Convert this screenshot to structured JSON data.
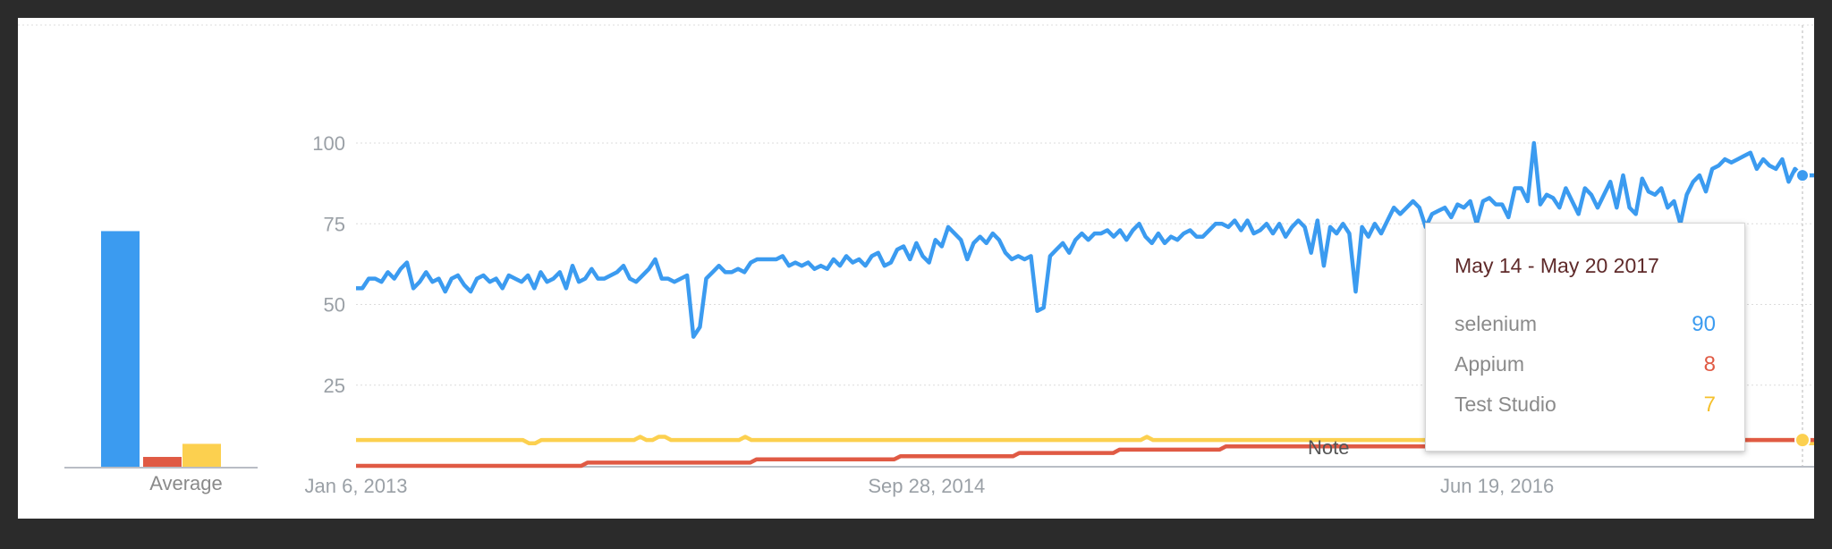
{
  "colors": {
    "selenium": "#3b9bf0",
    "appium": "#e05a44",
    "test_studio": "#fcd04f",
    "grid": "#dcdcdc"
  },
  "average_label": "Average",
  "note_label": "Note",
  "tooltip": {
    "title": "May 14 - May 20 2017",
    "rows": [
      {
        "name": "selenium",
        "value": "90"
      },
      {
        "name": "Appium",
        "value": "8"
      },
      {
        "name": "Test Studio",
        "value": "7"
      }
    ]
  },
  "chart_data": [
    {
      "type": "bar",
      "xlabel": "Average",
      "categories": [
        "selenium",
        "Appium",
        "Test Studio"
      ],
      "values": [
        72,
        3,
        7
      ],
      "ylim": [
        0,
        100
      ]
    },
    {
      "type": "line",
      "ylim": [
        0,
        100
      ],
      "y_ticks": [
        25,
        50,
        75,
        100
      ],
      "x_tick_labels": [
        "Jan 6, 2013",
        "Sep 28, 2014",
        "Jun 19, 2016"
      ],
      "x_range": [
        "2013-01-06",
        "2017-06-04"
      ],
      "grid": true,
      "series": [
        {
          "name": "selenium",
          "values": [
            55,
            55,
            58,
            58,
            57,
            60,
            58,
            61,
            63,
            55,
            57,
            60,
            57,
            58,
            54,
            58,
            59,
            56,
            54,
            58,
            59,
            57,
            58,
            55,
            59,
            58,
            57,
            59,
            55,
            60,
            57,
            58,
            60,
            55,
            62,
            57,
            58,
            61,
            58,
            58,
            59,
            60,
            62,
            58,
            57,
            59,
            61,
            64,
            58,
            58,
            57,
            58,
            59,
            40,
            43,
            58,
            60,
            62,
            60,
            60,
            61,
            60,
            63,
            64,
            64,
            64,
            64,
            65,
            62,
            63,
            62,
            63,
            61,
            62,
            61,
            64,
            62,
            65,
            63,
            64,
            62,
            65,
            66,
            62,
            63,
            67,
            68,
            64,
            69,
            65,
            63,
            70,
            68,
            74,
            72,
            70,
            64,
            69,
            71,
            69,
            72,
            70,
            66,
            64,
            65,
            64,
            65,
            48,
            49,
            65,
            67,
            69,
            66,
            70,
            72,
            70,
            72,
            72,
            73,
            71,
            73,
            70,
            73,
            75,
            71,
            69,
            72,
            69,
            71,
            70,
            72,
            73,
            71,
            71,
            73,
            75,
            75,
            74,
            76,
            73,
            76,
            72,
            73,
            75,
            72,
            75,
            71,
            74,
            76,
            74,
            66,
            76,
            62,
            74,
            72,
            75,
            72,
            54,
            74,
            71,
            75,
            72,
            76,
            80,
            78,
            80,
            82,
            80,
            74,
            78,
            79,
            80,
            77,
            81,
            80,
            82,
            75,
            82,
            83,
            81,
            81,
            77,
            86,
            86,
            82,
            100,
            81,
            84,
            83,
            80,
            86,
            82,
            78,
            86,
            84,
            80,
            84,
            88,
            80,
            90,
            80,
            78,
            89,
            85,
            84,
            86,
            80,
            82,
            75,
            84,
            88,
            90,
            85,
            92,
            93,
            95,
            94,
            95,
            96,
            97,
            92,
            95,
            93,
            92,
            95,
            88,
            92,
            90,
            90,
            90
          ]
        },
        {
          "name": "Appium",
          "values": [
            0,
            0,
            0,
            0,
            0,
            0,
            0,
            0,
            0,
            0,
            0,
            0,
            0,
            0,
            0,
            0,
            0,
            0,
            0,
            0,
            0,
            0,
            0,
            0,
            0,
            0,
            0,
            0,
            0,
            0,
            0,
            0,
            0,
            0,
            0,
            0,
            0,
            1,
            1,
            1,
            1,
            1,
            1,
            1,
            1,
            1,
            1,
            1,
            1,
            1,
            1,
            1,
            1,
            1,
            1,
            1,
            1,
            1,
            1,
            1,
            1,
            1,
            1,
            1,
            2,
            2,
            2,
            2,
            2,
            2,
            2,
            2,
            2,
            2,
            2,
            2,
            2,
            2,
            2,
            2,
            2,
            2,
            2,
            2,
            2,
            2,
            2,
            3,
            3,
            3,
            3,
            3,
            3,
            3,
            3,
            3,
            3,
            3,
            3,
            3,
            3,
            3,
            3,
            3,
            3,
            3,
            4,
            4,
            4,
            4,
            4,
            4,
            4,
            4,
            4,
            4,
            4,
            4,
            4,
            4,
            4,
            4,
            5,
            5,
            5,
            5,
            5,
            5,
            5,
            5,
            5,
            5,
            5,
            5,
            5,
            5,
            5,
            5,
            5,
            6,
            6,
            6,
            6,
            6,
            6,
            6,
            6,
            6,
            6,
            6,
            6,
            6,
            6,
            6,
            6,
            6,
            6,
            6,
            6,
            6,
            6,
            6,
            6,
            6,
            6,
            6,
            6,
            6,
            6,
            6,
            6,
            6,
            7,
            7,
            7,
            7,
            7,
            7,
            7,
            7,
            7,
            7,
            7,
            7,
            7,
            7,
            7,
            7,
            7,
            7,
            7,
            7,
            7,
            7,
            7,
            7,
            7,
            7,
            7,
            7,
            7,
            7,
            7,
            7,
            7,
            7,
            7,
            7,
            7,
            7,
            7,
            8,
            8,
            8,
            8,
            8,
            8,
            8,
            8,
            8,
            8,
            8,
            8,
            8,
            8,
            8,
            8,
            8,
            8,
            8,
            8,
            8,
            8,
            8
          ]
        },
        {
          "name": "Test Studio",
          "values": [
            8,
            8,
            8,
            8,
            8,
            8,
            8,
            8,
            8,
            8,
            8,
            8,
            8,
            8,
            8,
            8,
            8,
            8,
            8,
            8,
            8,
            8,
            8,
            8,
            8,
            8,
            8,
            8,
            7,
            7,
            8,
            8,
            8,
            8,
            8,
            8,
            8,
            8,
            8,
            8,
            8,
            8,
            8,
            8,
            8,
            8,
            9,
            8,
            8,
            9,
            9,
            8,
            8,
            8,
            8,
            8,
            8,
            8,
            8,
            8,
            8,
            8,
            8,
            9,
            8,
            8,
            8,
            8,
            8,
            8,
            8,
            8,
            8,
            8,
            8,
            8,
            8,
            8,
            8,
            8,
            8,
            8,
            8,
            8,
            8,
            8,
            8,
            8,
            8,
            8,
            8,
            8,
            8,
            8,
            8,
            8,
            8,
            8,
            8,
            8,
            8,
            8,
            8,
            8,
            8,
            8,
            8,
            8,
            8,
            8,
            8,
            8,
            8,
            8,
            8,
            8,
            8,
            8,
            8,
            8,
            8,
            8,
            8,
            8,
            8,
            8,
            8,
            8,
            9,
            8,
            8,
            8,
            8,
            8,
            8,
            8,
            8,
            8,
            8,
            8,
            8,
            8,
            8,
            8,
            8,
            8,
            8,
            8,
            8,
            8,
            8,
            8,
            8,
            8,
            8,
            8,
            8,
            8,
            8,
            8,
            8,
            8,
            8,
            8,
            8,
            8,
            8,
            8,
            8,
            8,
            8,
            8,
            8,
            8,
            8,
            8,
            8,
            8,
            8,
            8,
            8,
            8,
            8,
            8,
            8,
            8,
            8,
            8,
            8,
            8,
            8,
            8,
            8,
            8,
            8,
            8,
            8,
            8,
            8,
            8,
            8,
            8,
            8,
            8,
            8,
            8,
            8,
            8,
            8,
            8,
            8,
            8,
            8,
            8,
            8,
            8,
            8,
            8,
            8,
            8,
            8,
            8,
            8,
            8,
            8,
            8,
            8,
            8,
            8,
            8,
            8,
            8,
            8,
            8,
            8,
            7,
            7
          ]
        }
      ]
    }
  ]
}
